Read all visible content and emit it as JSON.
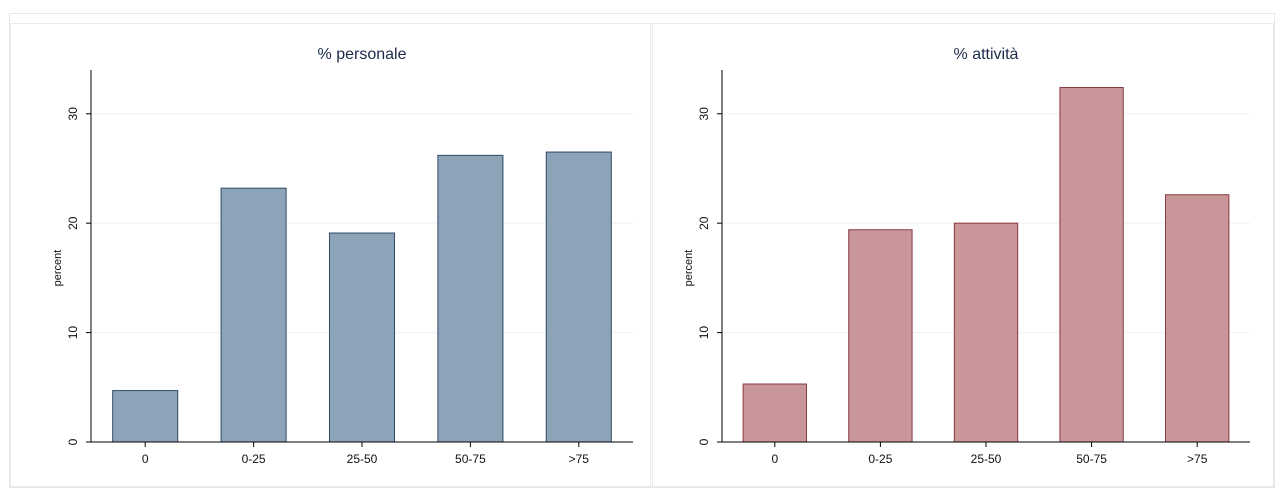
{
  "chart_data": [
    {
      "type": "bar",
      "title": "% personale",
      "ylabel": "percent",
      "xlabel": "",
      "categories": [
        "0",
        "0-25",
        "25-50",
        "50-75",
        ">75"
      ],
      "values": [
        4.7,
        23.2,
        19.1,
        26.2,
        26.5
      ],
      "ylim": [
        0,
        34
      ],
      "yticks": [
        0,
        10,
        20,
        30
      ],
      "grid": true,
      "bar_color": "#8ca3b8",
      "bar_edge_color": "#2f4a66"
    },
    {
      "type": "bar",
      "title": "% attività",
      "ylabel": "percent",
      "xlabel": "",
      "categories": [
        "0",
        "0-25",
        "25-50",
        "50-75",
        ">75"
      ],
      "values": [
        5.3,
        19.4,
        20.0,
        32.4,
        22.6
      ],
      "ylim": [
        0,
        34
      ],
      "yticks": [
        0,
        10,
        20,
        30
      ],
      "grid": true,
      "bar_color": "#c99799",
      "bar_edge_color": "#8a3a40"
    }
  ]
}
